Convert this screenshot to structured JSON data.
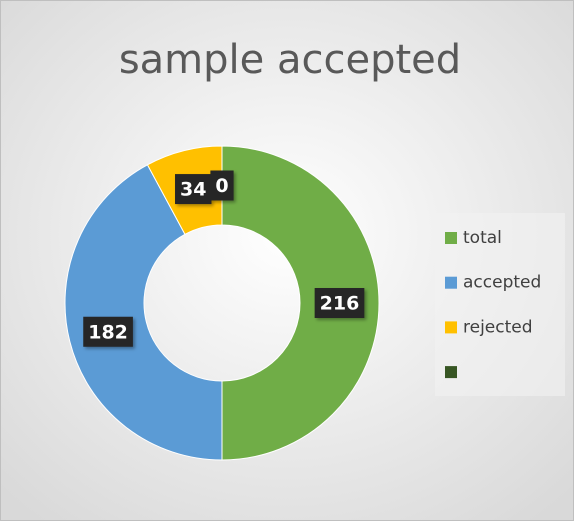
{
  "chart_data": {
    "type": "donut",
    "title": "sample accepted",
    "categories": [
      "total",
      "accepted",
      "rejected",
      null
    ],
    "values": [
      216,
      182,
      34,
      0
    ],
    "colors": [
      "#70ad47",
      "#5b9bd5",
      "#ffc000",
      "#375623"
    ],
    "legend": "right"
  }
}
